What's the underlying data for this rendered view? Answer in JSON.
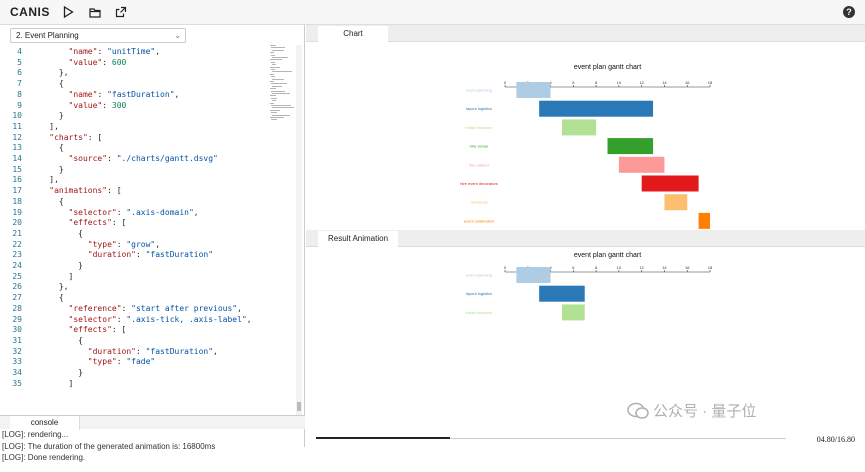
{
  "app": {
    "title": "CANIS"
  },
  "toolbar": {
    "icons": [
      "play-icon",
      "folder-icon",
      "export-icon"
    ],
    "help_label": "?"
  },
  "editor": {
    "dropdown_value": "2. Event Planning",
    "lines": [
      {
        "n": "4",
        "tokens": [
          [
            "p",
            "      {\n"
          ]
        ]
      },
      {
        "n": "4",
        "tokens": [
          [
            "p",
            "        "
          ],
          [
            "k",
            "\"name\""
          ],
          [
            "p",
            ": "
          ],
          [
            "s",
            "\"unitTime\""
          ],
          [
            "p",
            ","
          ]
        ]
      },
      {
        "n": "5",
        "tokens": [
          [
            "p",
            "        "
          ],
          [
            "k",
            "\"value\""
          ],
          [
            "p",
            ": "
          ],
          [
            "n",
            "600"
          ]
        ]
      },
      {
        "n": "6",
        "tokens": [
          [
            "p",
            "      },"
          ]
        ]
      },
      {
        "n": "7",
        "tokens": [
          [
            "p",
            "      {"
          ]
        ]
      },
      {
        "n": "8",
        "tokens": [
          [
            "p",
            "        "
          ],
          [
            "k",
            "\"name\""
          ],
          [
            "p",
            ": "
          ],
          [
            "s",
            "\"fastDuration\""
          ],
          [
            "p",
            ","
          ]
        ]
      },
      {
        "n": "9",
        "tokens": [
          [
            "p",
            "        "
          ],
          [
            "k",
            "\"value\""
          ],
          [
            "p",
            ": "
          ],
          [
            "n",
            "300"
          ]
        ]
      },
      {
        "n": "10",
        "tokens": [
          [
            "p",
            "      }"
          ]
        ]
      },
      {
        "n": "11",
        "tokens": [
          [
            "p",
            "    ],"
          ]
        ]
      },
      {
        "n": "12",
        "tokens": [
          [
            "p",
            "    "
          ],
          [
            "k",
            "\"charts\""
          ],
          [
            "p",
            ": ["
          ]
        ]
      },
      {
        "n": "13",
        "tokens": [
          [
            "p",
            "      {"
          ]
        ]
      },
      {
        "n": "14",
        "tokens": [
          [
            "p",
            "        "
          ],
          [
            "k",
            "\"source\""
          ],
          [
            "p",
            ": "
          ],
          [
            "s",
            "\"./charts/gantt.dsvg\""
          ]
        ]
      },
      {
        "n": "15",
        "tokens": [
          [
            "p",
            "      }"
          ]
        ]
      },
      {
        "n": "16",
        "tokens": [
          [
            "p",
            "    ],"
          ]
        ]
      },
      {
        "n": "17",
        "tokens": [
          [
            "p",
            "    "
          ],
          [
            "k",
            "\"animations\""
          ],
          [
            "p",
            ": ["
          ]
        ]
      },
      {
        "n": "18",
        "tokens": [
          [
            "p",
            "      {"
          ]
        ]
      },
      {
        "n": "19",
        "tokens": [
          [
            "p",
            "        "
          ],
          [
            "k",
            "\"selector\""
          ],
          [
            "p",
            ": "
          ],
          [
            "s",
            "\".axis-domain\""
          ],
          [
            "p",
            ","
          ]
        ]
      },
      {
        "n": "20",
        "tokens": [
          [
            "p",
            "        "
          ],
          [
            "k",
            "\"effects\""
          ],
          [
            "p",
            ": ["
          ]
        ]
      },
      {
        "n": "21",
        "tokens": [
          [
            "p",
            "          {"
          ]
        ]
      },
      {
        "n": "22",
        "tokens": [
          [
            "p",
            "            "
          ],
          [
            "k",
            "\"type\""
          ],
          [
            "p",
            ": "
          ],
          [
            "s",
            "\"grow\""
          ],
          [
            "p",
            ","
          ]
        ]
      },
      {
        "n": "23",
        "tokens": [
          [
            "p",
            "            "
          ],
          [
            "k",
            "\"duration\""
          ],
          [
            "p",
            ": "
          ],
          [
            "s",
            "\"fastDuration\""
          ]
        ]
      },
      {
        "n": "24",
        "tokens": [
          [
            "p",
            "          }"
          ]
        ]
      },
      {
        "n": "25",
        "tokens": [
          [
            "p",
            "        ]"
          ]
        ]
      },
      {
        "n": "26",
        "tokens": [
          [
            "p",
            "      },"
          ]
        ]
      },
      {
        "n": "27",
        "tokens": [
          [
            "p",
            "      {"
          ]
        ]
      },
      {
        "n": "28",
        "tokens": [
          [
            "p",
            "        "
          ],
          [
            "k",
            "\"reference\""
          ],
          [
            "p",
            ": "
          ],
          [
            "s",
            "\"start after previous\""
          ],
          [
            "p",
            ","
          ]
        ]
      },
      {
        "n": "29",
        "tokens": [
          [
            "p",
            "        "
          ],
          [
            "k",
            "\"selector\""
          ],
          [
            "p",
            ": "
          ],
          [
            "s",
            "\".axis-tick, .axis-label\""
          ],
          [
            "p",
            ","
          ]
        ]
      },
      {
        "n": "30",
        "tokens": [
          [
            "p",
            "        "
          ],
          [
            "k",
            "\"effects\""
          ],
          [
            "p",
            ": ["
          ]
        ]
      },
      {
        "n": "31",
        "tokens": [
          [
            "p",
            "          {"
          ]
        ]
      },
      {
        "n": "32",
        "tokens": [
          [
            "p",
            "            "
          ],
          [
            "k",
            "\"duration\""
          ],
          [
            "p",
            ": "
          ],
          [
            "s",
            "\"fastDuration\""
          ],
          [
            "p",
            ","
          ]
        ]
      },
      {
        "n": "33",
        "tokens": [
          [
            "p",
            "            "
          ],
          [
            "k",
            "\"type\""
          ],
          [
            "p",
            ": "
          ],
          [
            "s",
            "\"fade\""
          ]
        ]
      },
      {
        "n": "34",
        "tokens": [
          [
            "p",
            "          }"
          ]
        ]
      },
      {
        "n": "35",
        "tokens": [
          [
            "p",
            "        ]"
          ]
        ]
      }
    ]
  },
  "console": {
    "tab_label": "console",
    "logs": [
      "[LOG]: rendering...",
      "[LOG]: The duration of the generated animation is: 16800ms",
      "[LOG]: Done rendering."
    ]
  },
  "chart_panel": {
    "tab_label": "Chart"
  },
  "result_panel": {
    "tab_label": "Result Animation"
  },
  "player": {
    "time": "04.80/16.80",
    "progress": 0.2857
  },
  "watermark": {
    "text": "公众号 · 量子位"
  },
  "chart_data": [
    {
      "type": "bar",
      "orientation": "horizontal-gantt",
      "title": "event plan gantt chart",
      "xlim": [
        0,
        18
      ],
      "xticks": [
        0,
        2,
        4,
        6,
        8,
        10,
        12,
        14,
        16,
        18
      ],
      "tasks": [
        {
          "name": "event planning",
          "start": 1,
          "end": 4,
          "color": "#aecde4"
        },
        {
          "name": "layout logistics",
          "start": 3,
          "end": 13,
          "color": "#2a79b6"
        },
        {
          "name": "install resource",
          "start": 5,
          "end": 8,
          "color": "#b3e194"
        },
        {
          "name": "hire venue",
          "start": 9,
          "end": 13,
          "color": "#33a02c"
        },
        {
          "name": "hire caterer",
          "start": 10,
          "end": 14,
          "color": "#fb9a99"
        },
        {
          "name": "hire event decorators",
          "start": 12,
          "end": 17,
          "color": "#e31a1c"
        },
        {
          "name": "rehearsal",
          "start": 14,
          "end": 16,
          "color": "#fdbf6f"
        },
        {
          "name": "event celebration",
          "start": 17,
          "end": 18,
          "color": "#ff7f00"
        }
      ]
    },
    {
      "type": "bar",
      "orientation": "horizontal-gantt",
      "title": "event plan gantt chart",
      "xlim": [
        0,
        18
      ],
      "xticks": [
        0,
        2,
        4,
        6,
        8,
        10,
        12,
        14,
        16,
        18
      ],
      "tasks": [
        {
          "name": "event planning",
          "start": 1,
          "end": 4,
          "color": "#aecde4"
        },
        {
          "name": "layout logistics",
          "start": 3,
          "end": 7,
          "color": "#2a79b6"
        },
        {
          "name": "install resource",
          "start": 5,
          "end": 7,
          "color": "#b3e194"
        }
      ]
    }
  ]
}
